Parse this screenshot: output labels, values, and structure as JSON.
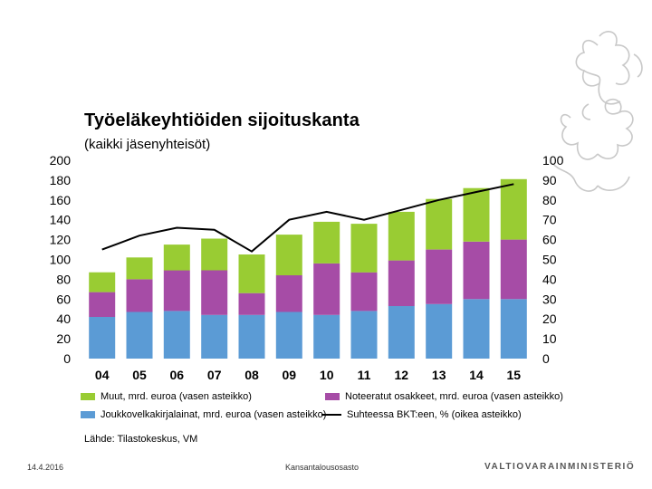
{
  "chart_data": {
    "type": "bar",
    "stacked": true,
    "title": "Työeläkeyhtiöiden sijoituskanta",
    "subtitle": "(kaikki jäsenyhteisöt)",
    "categories": [
      "04",
      "05",
      "06",
      "07",
      "08",
      "09",
      "10",
      "11",
      "12",
      "13",
      "14",
      "15"
    ],
    "series": [
      {
        "name": "Joukkovelkakirjalainat, mrd. euroa (vasen asteikko)",
        "color": "#5b9bd5",
        "axis": "left",
        "values": [
          42,
          47,
          48,
          44,
          44,
          47,
          44,
          48,
          53,
          55,
          60,
          60
        ]
      },
      {
        "name": "Noteeratut osakkeet, mrd. euroa (vasen asteikko)",
        "color": "#a64ca6",
        "axis": "left",
        "values": [
          25,
          33,
          41,
          45,
          22,
          37,
          52,
          39,
          46,
          55,
          58,
          60
        ]
      },
      {
        "name": "Muut, mrd. euroa (vasen asteikko)",
        "color": "#99cc33",
        "axis": "left",
        "values": [
          20,
          22,
          26,
          32,
          39,
          41,
          42,
          49,
          49,
          51,
          54,
          61
        ]
      }
    ],
    "line": {
      "name": "Suhteessa BKT:een, % (oikea asteikko)",
      "color": "#000000",
      "axis": "right",
      "values": [
        55,
        62,
        66,
        65,
        54,
        70,
        74,
        70,
        75,
        80,
        84,
        88
      ]
    },
    "ylim_left": [
      0,
      200
    ],
    "ylim_right": [
      0,
      100
    ],
    "yticks_left": [
      "0",
      "20",
      "40",
      "60",
      "80",
      "100",
      "120",
      "140",
      "160",
      "180",
      "200"
    ],
    "yticks_right": [
      "0",
      "10",
      "20",
      "30",
      "40",
      "50",
      "60",
      "70",
      "80",
      "90",
      "100"
    ],
    "grid": false,
    "legend_placement": "bottom"
  },
  "legend": {
    "muut": "Muut, mrd. euroa (vasen asteikko)",
    "noteeratut": "Noteeratut osakkeet, mrd. euroa (vasen asteikko)",
    "joukkovelka": "Joukkovelkakirjalainat, mrd. euroa (vasen asteikko)",
    "suhde": "Suhteessa BKT:een, % (oikea asteikko)"
  },
  "source": "Lähde: Tilastokeskus, VM",
  "footer": {
    "date": "14.4.2016",
    "department": "Kansantalousosasto",
    "ministry": "VALTIOVARAINMINISTERIÖ"
  },
  "colors": {
    "bonds": "#5b9bd5",
    "equities": "#a64ca6",
    "other": "#99cc33",
    "line": "#000000",
    "crest": "#c8c8c8"
  },
  "icons": {
    "crest": "finnish-lion-crest-icon"
  }
}
